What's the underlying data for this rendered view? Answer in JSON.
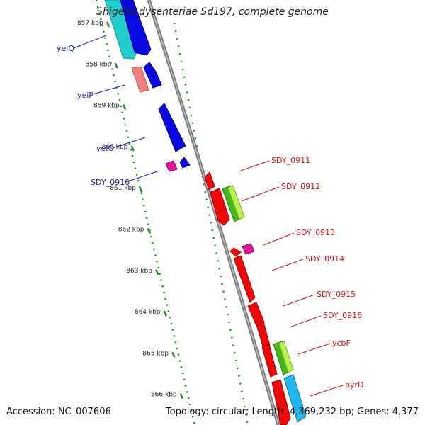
{
  "title": "Shigella dysenteriae Sd197, complete genome",
  "footer": {
    "accession": "Accession: NC_007606",
    "summary": "Topology: circular; Length: 4,369,232 bp; Genes: 4,377"
  },
  "colors": {
    "backbone": "#8f8f8f",
    "tick": "#1f8a1f",
    "label_left": "#1a1aa8",
    "label_right": "#dd1010",
    "gene_blue": "#0a0ae0",
    "gene_cyan": "#22cccc",
    "gene_salmon": "#f08080",
    "gene_magenta": "#e0189a",
    "gene_red": "#ee0a0a",
    "gene_green": "#44b81c",
    "gene_skyblue": "#20b8ee"
  },
  "kbp_labels": [
    "857 kbp",
    "858 kbp",
    "859 kbp",
    "860 kbp",
    "861 kbp",
    "862 kbp",
    "863 kbp",
    "864 kbp",
    "865 kbp",
    "866 kbp"
  ],
  "genes_left": [
    {
      "label": "yeiQ"
    },
    {
      "label": "yeiP"
    },
    {
      "label": "yeiO"
    },
    {
      "label": "SDY_0910"
    }
  ],
  "genes_right": [
    {
      "label": "SDY_0911"
    },
    {
      "label": "SDY_0912"
    },
    {
      "label": "SDY_0913"
    },
    {
      "label": "SDY_0914"
    },
    {
      "label": "SDY_0915"
    },
    {
      "label": "SDY_0916"
    },
    {
      "label": "ycbF"
    },
    {
      "label": "pyrD"
    }
  ]
}
